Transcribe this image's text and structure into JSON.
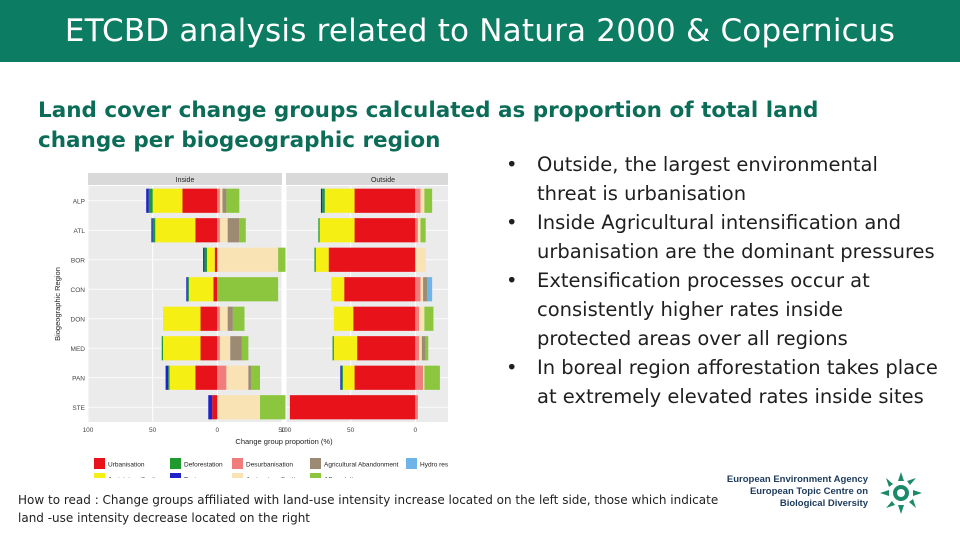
{
  "header": {
    "title": "ETCBD analysis related to Natura 2000 & Copernicus"
  },
  "subtitle": "Land cover change groups calculated as proportion of total land change per biogeographic region",
  "bullets": [
    "Outside, the largest environmental threat is urbanisation",
    "Inside Agricultural intensification and urbanisation are the dominant pressures",
    "Extensification processes occur at consistently higher rates inside protected areas over all regions",
    "In boreal region afforestation takes place at extremely elevated rates inside sites"
  ],
  "bullet_char": "•",
  "how_to_read": "How to read : Change groups affiliated with land-use intensity increase located on the left side, those which indicate land -use intensity decrease located on the right",
  "logo": {
    "line1": "European Environment Agency",
    "line2": "European Topic Centre on",
    "line3": "Biological Diversity",
    "icon": "sun-leaf-logo-icon"
  },
  "chart_data": {
    "type": "bar",
    "orientation": "horizontal-diverging",
    "panels": [
      "Inside",
      "Outside"
    ],
    "categories": [
      "ALP",
      "ATL",
      "BOR",
      "CON",
      "DON",
      "MED",
      "PAN",
      "STE"
    ],
    "ylabel": "Biogeographic Region",
    "xlabel": "Change group proportion (%)",
    "xlim": [
      -100,
      50
    ],
    "xticks": [
      -100,
      -50,
      0,
      50
    ],
    "xtick_labels": [
      "100",
      "50",
      "0",
      "50"
    ],
    "grid": true,
    "legend_position": "bottom",
    "series": [
      {
        "name": "Urbanisation",
        "side": "left",
        "color": "#e8121b"
      },
      {
        "name": "Agri. intensification",
        "side": "left",
        "color": "#f5ef13"
      },
      {
        "name": "Deforestation",
        "side": "left",
        "color": "#1e9a2e"
      },
      {
        "name": "Drainage",
        "side": "left",
        "color": "#1f22c8"
      },
      {
        "name": "Desurbanisation",
        "side": "right",
        "color": "#f07c7c"
      },
      {
        "name": "Agri. extensification",
        "side": "right",
        "color": "#f9e3b4"
      },
      {
        "name": "Agricultural Abandonment",
        "side": "right",
        "color": "#9c8a72"
      },
      {
        "name": "Afforestation",
        "side": "right",
        "color": "#8cc63f"
      },
      {
        "name": "Hydro restoration",
        "side": "right",
        "color": "#6fb4e8"
      }
    ],
    "data": {
      "Inside": {
        "Urbanisation": [
          27,
          17,
          2,
          3,
          13,
          13,
          17,
          4
        ],
        "Agri. intensification": [
          23,
          31,
          6,
          19,
          29,
          29,
          20,
          0
        ],
        "Deforestation": [
          3,
          2,
          2,
          1,
          0,
          1,
          1,
          0
        ],
        "Drainage": [
          2,
          1,
          1,
          1,
          0,
          0,
          2,
          3
        ],
        "Desurbanisation": [
          2,
          2,
          0,
          0,
          2,
          2,
          7,
          0
        ],
        "Agri. extensification": [
          2,
          6,
          47,
          0,
          6,
          8,
          17,
          33
        ],
        "Agricultural Abandonment": [
          3,
          9,
          0,
          0,
          4,
          9,
          2,
          0
        ],
        "Afforestation": [
          10,
          5,
          8,
          47,
          9,
          5,
          7,
          20
        ],
        "Hydro restoration": [
          0,
          0,
          0,
          0,
          0,
          0,
          0,
          0
        ]
      },
      "Outside": {
        "Urbanisation": [
          47,
          47,
          67,
          55,
          48,
          45,
          47,
          97
        ],
        "Agri. intensification": [
          23,
          27,
          10,
          10,
          15,
          18,
          9,
          0
        ],
        "Deforestation": [
          2,
          1,
          1,
          0,
          0,
          1,
          1,
          0
        ],
        "Drainage": [
          1,
          0,
          0,
          0,
          0,
          0,
          1,
          0
        ],
        "Desurbanisation": [
          4,
          2,
          0,
          4,
          3,
          3,
          6,
          2
        ],
        "Agri. extensification": [
          3,
          2,
          8,
          2,
          4,
          2,
          1,
          0
        ],
        "Agricultural Abandonment": [
          0,
          0,
          0,
          3,
          0,
          3,
          0,
          0
        ],
        "Afforestation": [
          6,
          4,
          0,
          0,
          7,
          2,
          12,
          0
        ],
        "Hydro restoration": [
          0,
          0,
          0,
          4,
          0,
          0,
          0,
          0
        ]
      }
    }
  }
}
